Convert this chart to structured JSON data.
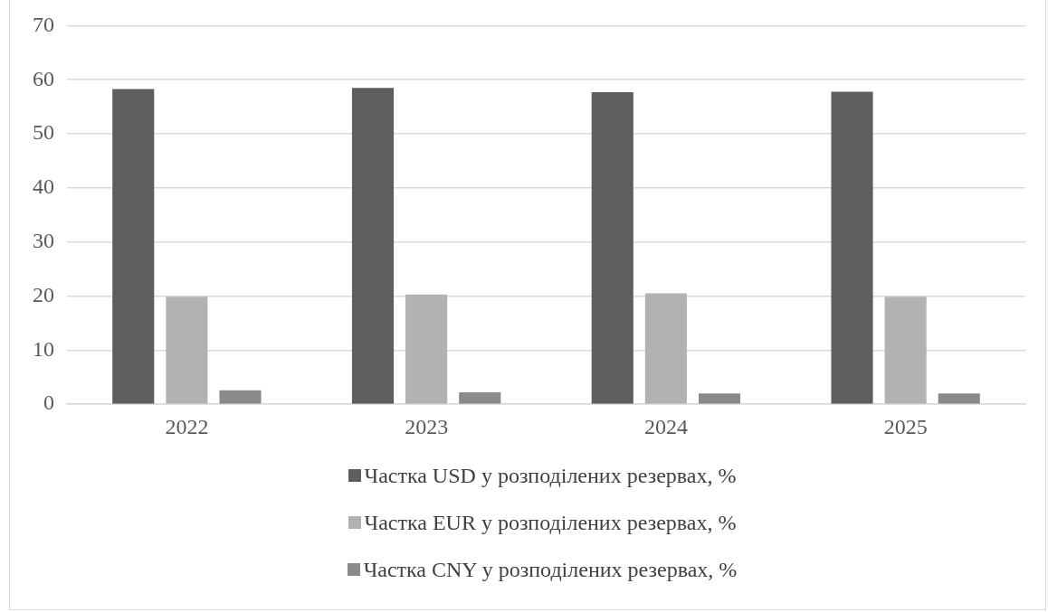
{
  "chart_data": {
    "type": "bar",
    "categories": [
      "2022",
      "2023",
      "2024",
      "2025"
    ],
    "series": [
      {
        "name": "Частка USD у розподілених резервах, %",
        "color": "#5e5e5e",
        "values": [
          58.3,
          58.5,
          57.7,
          57.8
        ]
      },
      {
        "name": "Частка EUR у розподілених резервах, %",
        "color": "#b2b2b2",
        "values": [
          19.9,
          20.3,
          20.5,
          19.9
        ]
      },
      {
        "name": "Частка CNY у розподілених резервах, %",
        "color": "#8a8a8a",
        "values": [
          2.6,
          2.2,
          2.0,
          2.0
        ]
      }
    ],
    "ylim": [
      0,
      70
    ],
    "yticks": [
      0,
      10,
      20,
      30,
      40,
      50,
      60,
      70
    ],
    "grid": "y",
    "legend": "bottom"
  }
}
